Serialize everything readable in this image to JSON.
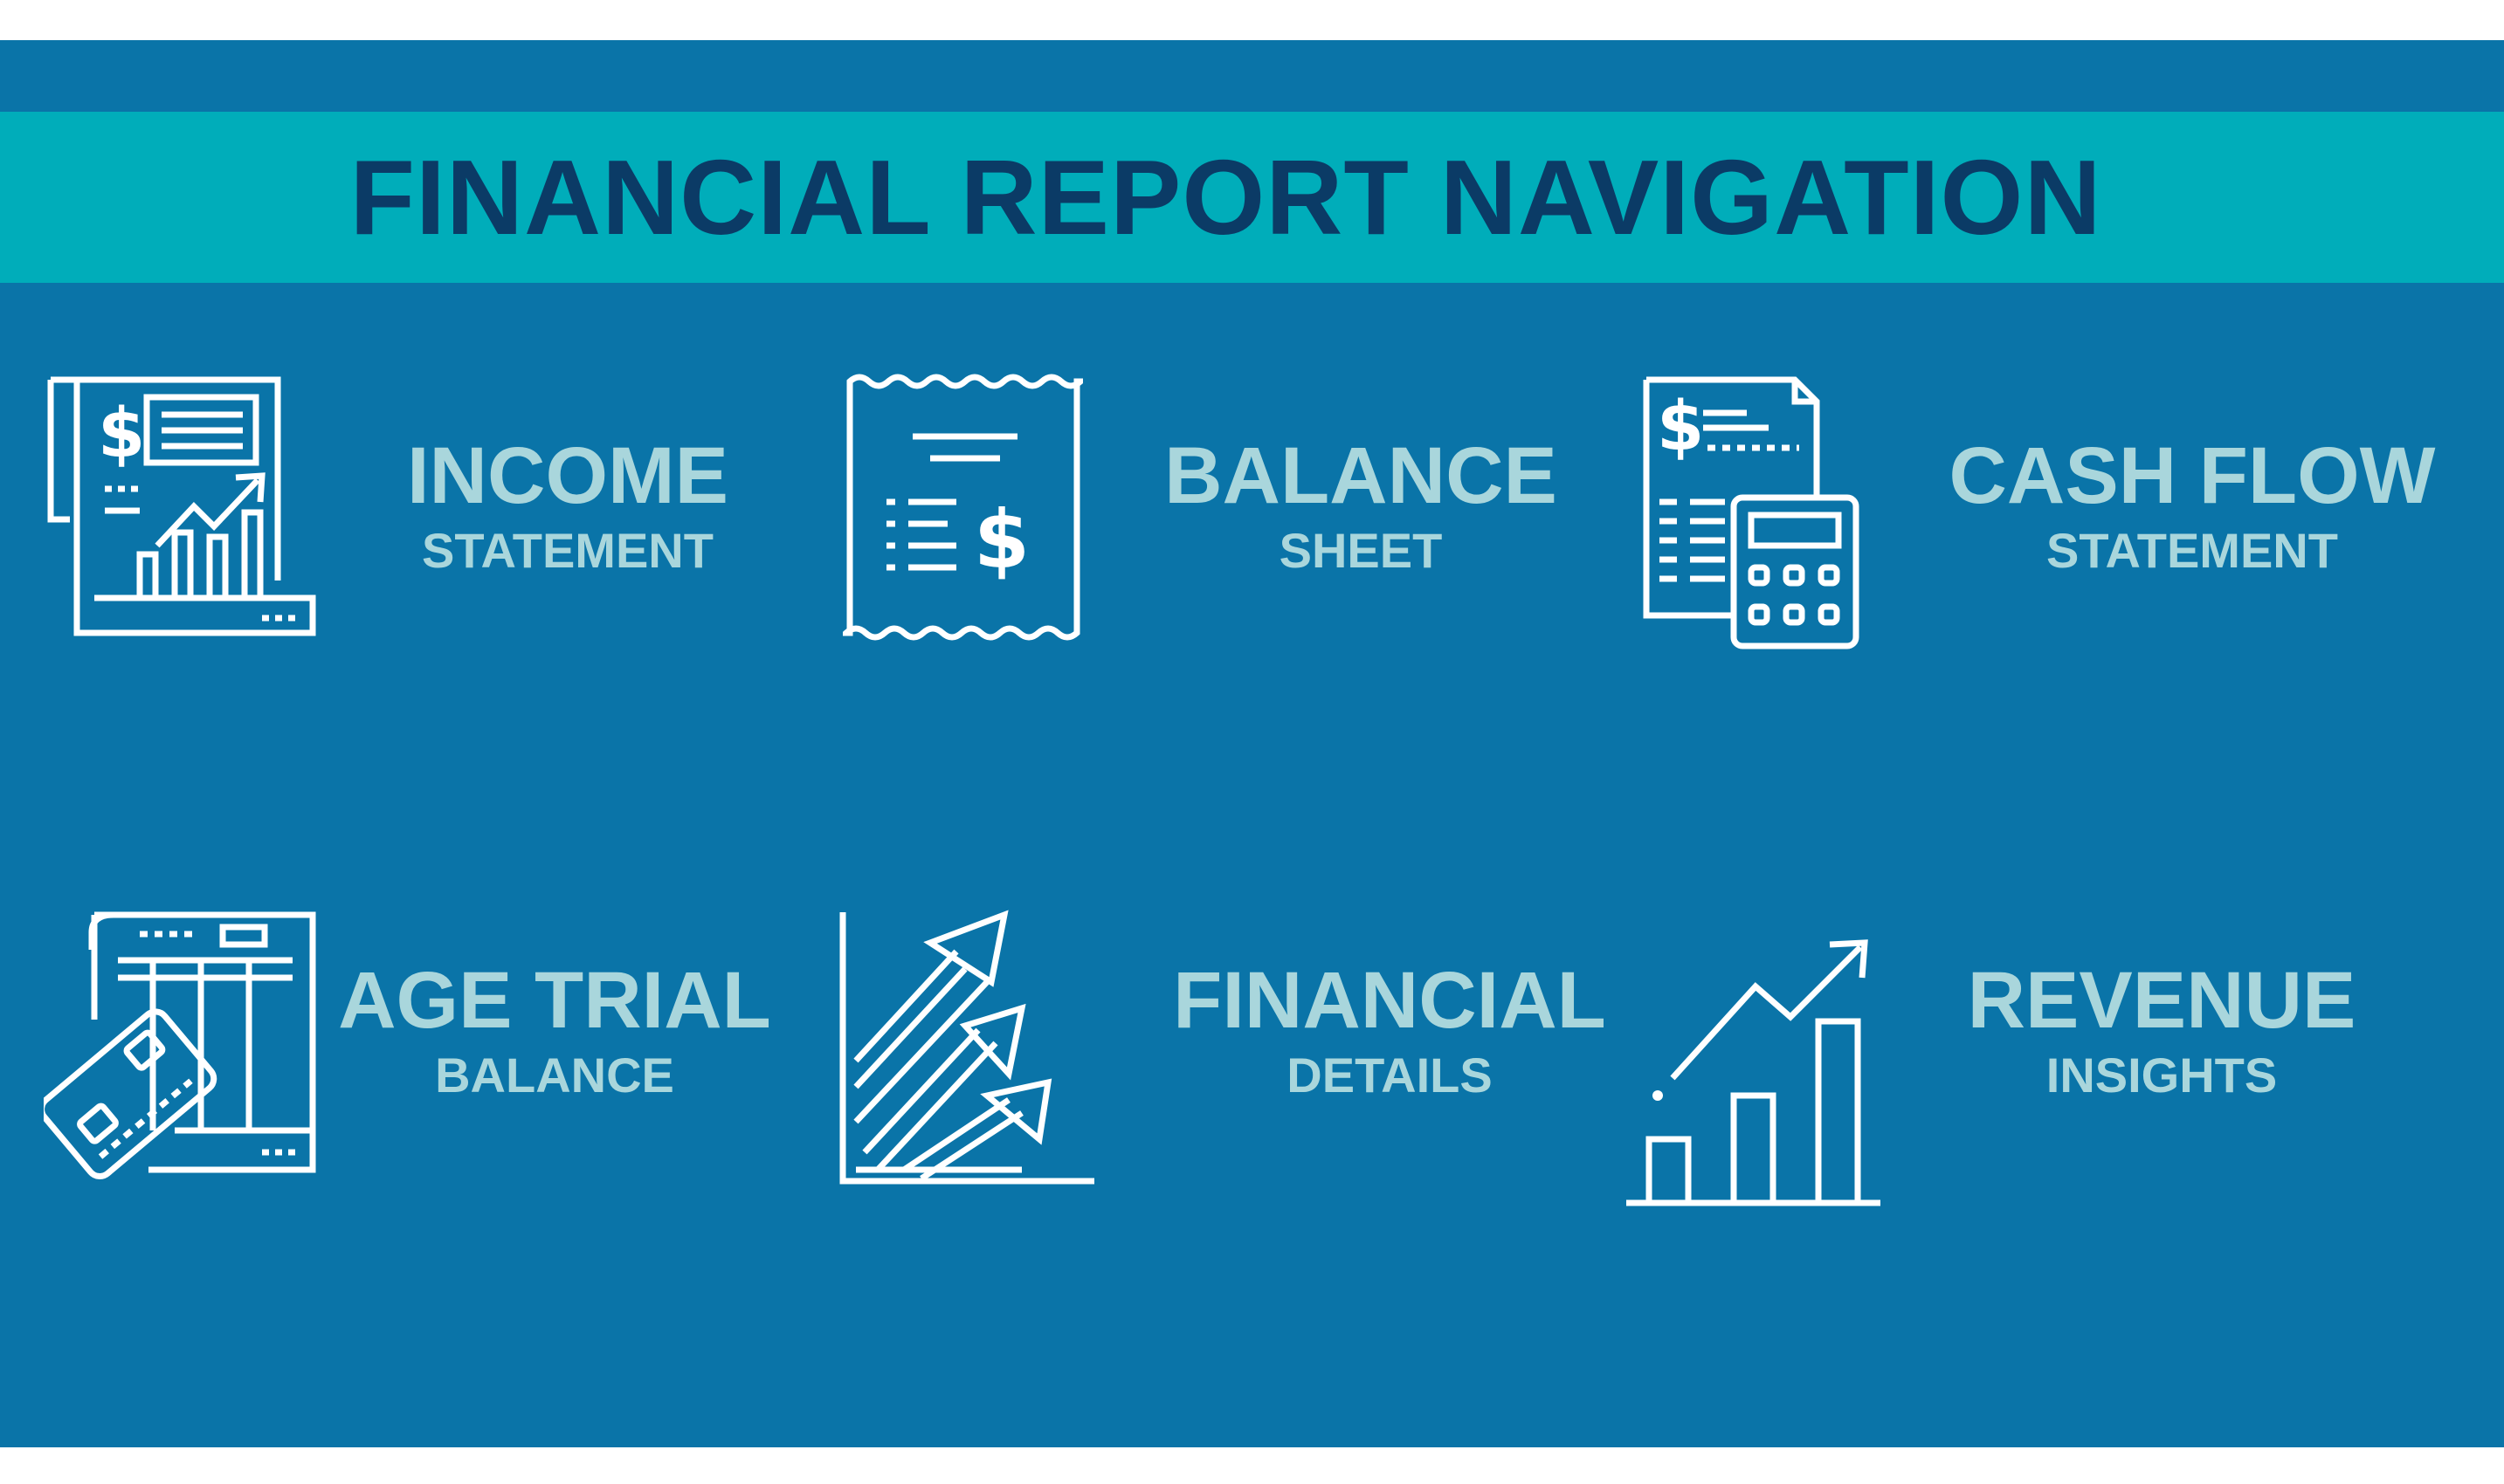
{
  "header": {
    "title": "FINANCIAL REPORT NAVIGATION"
  },
  "colors": {
    "panel_background": "#0a74a8",
    "title_band": "#00adba",
    "title_text": "#0b3b66",
    "label_text": "#a9d6dc",
    "icon_stroke": "#ffffff"
  },
  "tiles": [
    {
      "main": "INCOME",
      "sub": "STATEMENT",
      "icon": "income-statement-icon"
    },
    {
      "main": "BALANCE",
      "sub": "SHEET",
      "icon": "receipt-dollar-icon"
    },
    {
      "main": "CASH FLOW",
      "sub": "STATEMENT",
      "icon": "invoice-calculator-icon"
    },
    {
      "main": "AGE TRIAL",
      "sub": "BALANCE",
      "icon": "ledger-card-icon"
    },
    {
      "main": "FINANCIAL",
      "sub": "DETAILS",
      "icon": "rising-arrows-icon"
    },
    {
      "main": "REVENUE",
      "sub": "INSIGHTS",
      "icon": "bar-growth-chart-icon"
    }
  ]
}
